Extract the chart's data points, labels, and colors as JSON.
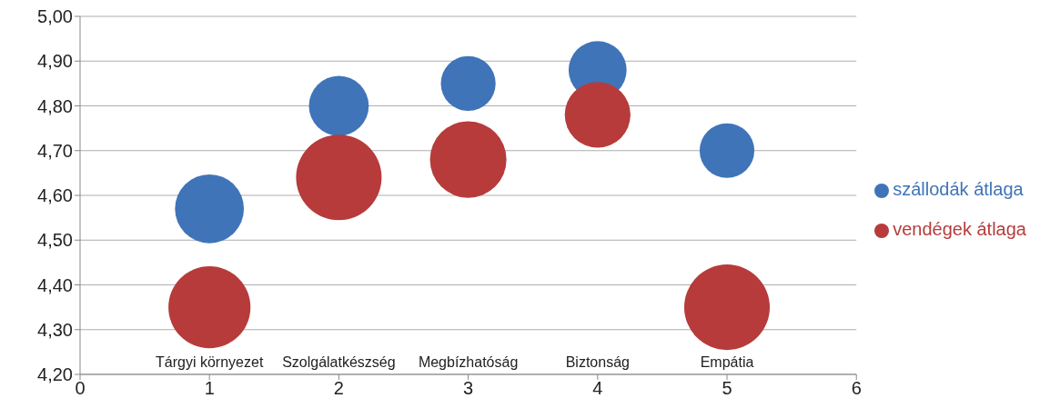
{
  "chart_data": {
    "type": "bubble",
    "xlim": [
      0,
      6
    ],
    "xticks": [
      0,
      1,
      2,
      3,
      4,
      5,
      6
    ],
    "ylim": [
      4.2,
      5.0
    ],
    "yticks": [
      {
        "value": 4.2,
        "label": "4,20"
      },
      {
        "value": 4.3,
        "label": "4,30"
      },
      {
        "value": 4.4,
        "label": "4,40"
      },
      {
        "value": 4.5,
        "label": "4,50"
      },
      {
        "value": 4.6,
        "label": "4,60"
      },
      {
        "value": 4.7,
        "label": "4,70"
      },
      {
        "value": 4.8,
        "label": "4,80"
      },
      {
        "value": 4.9,
        "label": "4,90"
      },
      {
        "value": 5.0,
        "label": "5,00"
      }
    ],
    "grid": "y",
    "legend": "right",
    "series": [
      {
        "name": "szállodák átlaga",
        "color": "#3f74b8",
        "x": [
          1,
          2,
          3,
          4,
          5
        ],
        "values": [
          4.57,
          4.8,
          4.85,
          4.88,
          4.7
        ],
        "sizes": [
          0.65,
          0.49,
          0.41,
          0.46,
          0.41
        ]
      },
      {
        "name": "vendégek átlaga",
        "color": "#b73b3b",
        "x": [
          1,
          2,
          3,
          4,
          5
        ],
        "values": [
          4.35,
          4.64,
          4.68,
          4.78,
          4.35
        ],
        "sizes": [
          0.92,
          1,
          0.8,
          0.59,
          1
        ]
      }
    ],
    "annotations": [
      "Tárgyi környezet",
      "Szolgálatkészség",
      "Megbízhatóság",
      "Biztonság",
      "Empátia"
    ]
  }
}
